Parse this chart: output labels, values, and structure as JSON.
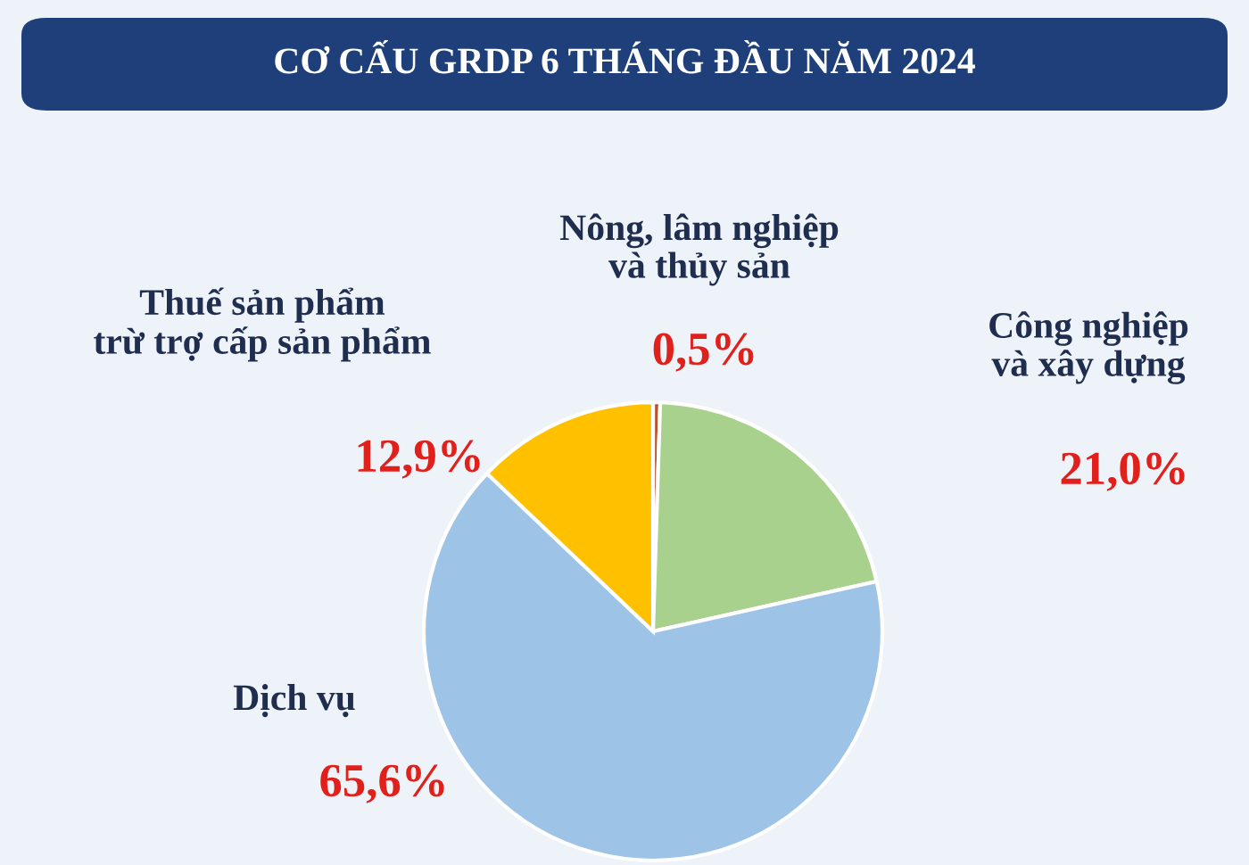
{
  "chart_data": {
    "type": "pie",
    "title": "CƠ CẤU GRDP 6 THÁNG ĐẦU NĂM 2024",
    "categories": [
      "Nông, lâm nghiệp\nvà thủy sản",
      "Công nghiệp\nvà xây dựng",
      "Dịch vụ",
      "Thuế sản phẩm\ntrừ trợ cấp sản phẩm"
    ],
    "values": [
      0.5,
      21.0,
      65.6,
      12.9
    ],
    "value_labels": [
      "0,5%",
      "21,0%",
      "65,6%",
      "12,9%"
    ],
    "colors": [
      "#b5562f",
      "#a9d18e",
      "#9dc3e6",
      "#ffc000"
    ]
  }
}
